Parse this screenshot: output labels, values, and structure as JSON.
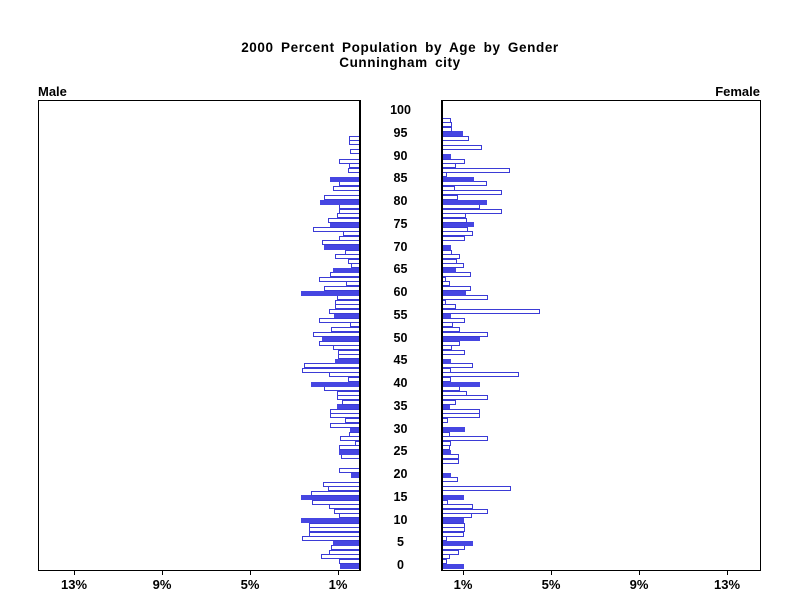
{
  "title": {
    "line1": "2000 Percent Population by Age by Gender",
    "line2": "Cunningham city"
  },
  "panels": {
    "left_header": "Male",
    "right_header": "Female"
  },
  "chart_data": {
    "type": "bar",
    "subtype": "population-pyramid",
    "title": "2000 Percent Population by Age by Gender",
    "subtitle": "Cunningham city",
    "unit": "percent of population",
    "age_min": 0,
    "age_max": 100,
    "age_tick_interval": 5,
    "age_ticks": [
      0,
      5,
      10,
      15,
      20,
      25,
      30,
      35,
      40,
      45,
      50,
      55,
      60,
      65,
      70,
      75,
      80,
      85,
      90,
      95,
      100
    ],
    "x_ticks_percent": [
      1,
      5,
      9,
      13
    ],
    "left_axis_tick_labels": [
      "1%",
      "5%",
      "9%",
      "13%"
    ],
    "right_axis_tick_labels": [
      "1%",
      "5%",
      "9%",
      "13%"
    ],
    "x_max_percent": 14.6,
    "grid": false,
    "highlight_rule": "bars at ages divisible by 5 are solid filled; other ages are outlined",
    "colors": {
      "filled_bar": "#4646e2",
      "bar_outline": "#3b3bd6",
      "axis": "#000000",
      "text": "#000000",
      "background": "#ffffff"
    },
    "series": [
      {
        "name": "Male",
        "side": "left",
        "values_by_age": [
          0.86,
          0.89,
          1.73,
          1.38,
          1.27,
          1.2,
          2.58,
          2.27,
          2.27,
          2.27,
          2.66,
          0.89,
          1.12,
          1.35,
          2.12,
          2.63,
          2.17,
          1.43,
          1.66,
          0,
          0.35,
          0.89,
          0,
          0,
          0.8,
          0.9,
          0.9,
          0.2,
          0.85,
          0.45,
          0.4,
          1.3,
          0.66,
          1.3,
          1.3,
          1.0,
          0.77,
          1.0,
          1.0,
          1.58,
          2.2,
          0.5,
          1.35,
          2.6,
          2.5,
          1.1,
          0.97,
          0.97,
          1.2,
          1.8,
          1.7,
          2.1,
          1.27,
          0.43,
          1.81,
          1.12,
          1.38,
          1.09,
          1.09,
          1.0,
          2.65,
          1.6,
          0.58,
          1.8,
          1.3,
          1.2,
          0.35,
          0.5,
          1.09,
          0.66,
          1.6,
          1.7,
          0.9,
          0.75,
          2.1,
          1.3,
          1.4,
          1.0,
          0.9,
          0.9,
          1.76,
          1.6,
          0,
          1.18,
          0.92,
          1.3,
          0,
          0.5,
          0.45,
          0.9,
          0,
          0.4,
          0,
          0.45,
          0.45,
          0,
          0,
          0,
          0,
          0,
          0
        ]
      },
      {
        "name": "Female",
        "side": "right",
        "values_by_age": [
          0.97,
          0.2,
          0.3,
          0.74,
          1.0,
          1.38,
          0.2,
          0.97,
          1.0,
          1.0,
          0.97,
          1.3,
          2.05,
          1.35,
          0.23,
          0.97,
          0,
          3.1,
          0,
          0.66,
          0.38,
          0,
          0,
          0.74,
          0.74,
          0.38,
          0.3,
          0.38,
          2.05,
          0.3,
          1.0,
          0,
          0.23,
          1.69,
          1.69,
          0.3,
          0.6,
          2.05,
          1.1,
          0.75,
          1.69,
          0.35,
          3.43,
          0.35,
          1.38,
          0.38,
          0,
          1.0,
          0.4,
          0.75,
          1.66,
          2.05,
          0.75,
          0.45,
          1.0,
          0.35,
          4.4,
          0.6,
          0.15,
          2.05,
          1.05,
          1.28,
          0.3,
          0.15,
          1.28,
          0.6,
          0.97,
          0.65,
          0.75,
          0.4,
          0.35,
          0,
          1.0,
          1.35,
          1.15,
          1.4,
          1.08,
          1.05,
          2.7,
          1.66,
          2.0,
          0.7,
          2.7,
          0.55,
          2.0,
          1.4,
          0.2,
          3.05,
          0.6,
          1.0,
          0.35,
          0,
          1.75,
          0,
          1.2,
          0.9,
          0.4,
          0.4,
          0.35,
          0,
          0
        ]
      }
    ]
  }
}
